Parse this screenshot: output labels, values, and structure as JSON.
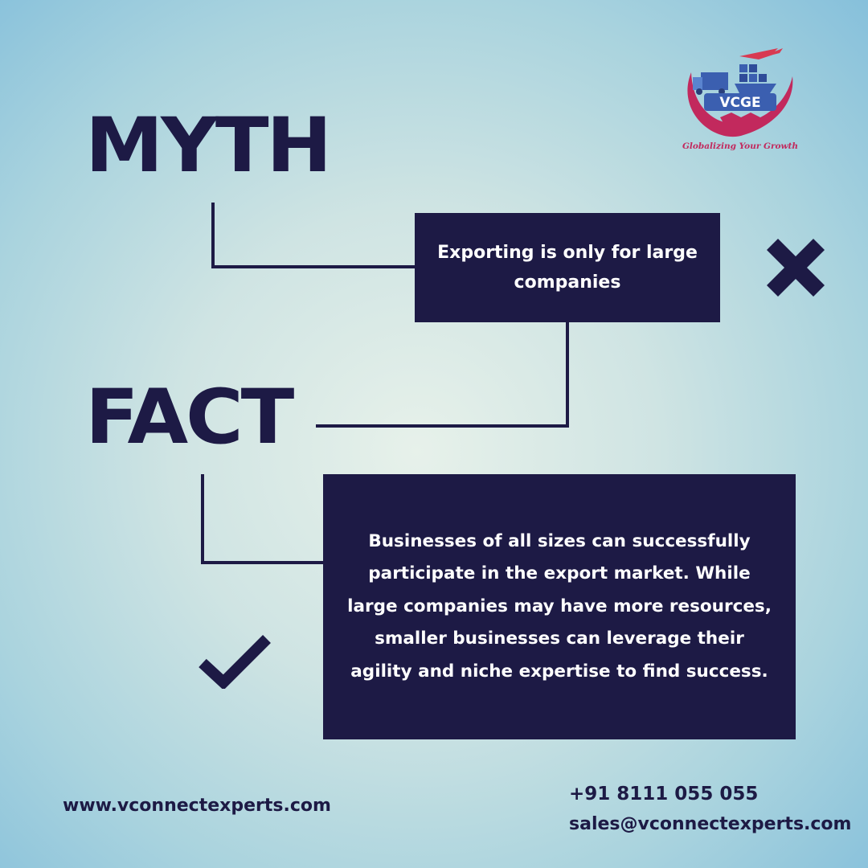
{
  "logo": {
    "brand": "VCGE",
    "tagline": "Globalizing Your Growth",
    "colors": {
      "arc": "#c2295d",
      "blue": "#3b5fb0",
      "plane": "#d83a52"
    }
  },
  "myth": {
    "heading": "MYTH",
    "text": "Exporting is only for large companies",
    "status_icon": "cross-icon"
  },
  "fact": {
    "heading": "FACT",
    "text": "Businesses of all sizes can successfully participate in the export market. While large companies may have more resources, smaller businesses can leverage their agility and niche expertise to find success.",
    "status_icon": "check-icon"
  },
  "footer": {
    "website": "www.vconnectexperts.com",
    "phone": "+91 8111 055 055",
    "email": "sales@vconnectexperts.com"
  },
  "colors": {
    "navy": "#1d1a45",
    "background_center": "#e7f1ea",
    "background_edge": "#86c0db"
  }
}
